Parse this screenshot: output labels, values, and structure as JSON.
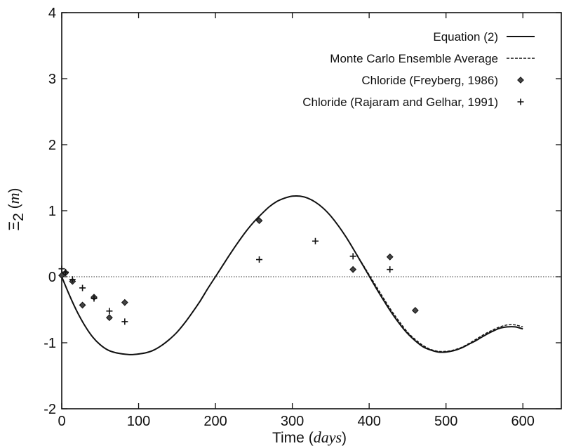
{
  "chart_data": {
    "type": "scatter",
    "title": "",
    "xlabel": "Time",
    "xlabel_unit": "days",
    "ylabel": "Ξ",
    "ylabel_sub": "2",
    "ylabel_unit": "m",
    "xlim": [
      0,
      650
    ],
    "ylim": [
      -2,
      4
    ],
    "xticks": [
      0,
      100,
      200,
      300,
      400,
      500,
      600
    ],
    "yticks": [
      -2,
      -1,
      0,
      1,
      2,
      3,
      4
    ],
    "grid": false,
    "legend_position": "top-right",
    "reference_line_y": 0,
    "series": [
      {
        "name": "Equation (2)",
        "style": "solid-line",
        "x": [
          0,
          10,
          20,
          30,
          40,
          50,
          60,
          70,
          80,
          90,
          100,
          110,
          120,
          130,
          140,
          150,
          160,
          170,
          180,
          190,
          200,
          210,
          220,
          230,
          240,
          250,
          260,
          270,
          280,
          290,
          300,
          310,
          320,
          330,
          340,
          350,
          360,
          370,
          380,
          390,
          400,
          410,
          420,
          430,
          440,
          450,
          460,
          470,
          480,
          490,
          500,
          510,
          520,
          530,
          540,
          550,
          560,
          570,
          580,
          590,
          600
        ],
        "y": [
          0.0,
          -0.28,
          -0.53,
          -0.74,
          -0.91,
          -1.03,
          -1.11,
          -1.15,
          -1.17,
          -1.18,
          -1.17,
          -1.15,
          -1.11,
          -1.04,
          -0.95,
          -0.84,
          -0.7,
          -0.54,
          -0.37,
          -0.18,
          0.0,
          0.18,
          0.36,
          0.53,
          0.69,
          0.83,
          0.95,
          1.06,
          1.14,
          1.19,
          1.22,
          1.22,
          1.19,
          1.13,
          1.04,
          0.92,
          0.77,
          0.6,
          0.41,
          0.21,
          0.01,
          -0.19,
          -0.38,
          -0.56,
          -0.72,
          -0.86,
          -0.97,
          -1.06,
          -1.11,
          -1.14,
          -1.14,
          -1.12,
          -1.08,
          -1.02,
          -0.96,
          -0.89,
          -0.83,
          -0.78,
          -0.76,
          -0.76,
          -0.79
        ]
      },
      {
        "name": "Monte Carlo Ensemble Average",
        "style": "dashed-line",
        "x": [
          0,
          10,
          20,
          30,
          40,
          50,
          60,
          70,
          80,
          90,
          100,
          110,
          120,
          130,
          140,
          150,
          160,
          170,
          180,
          190,
          200,
          210,
          220,
          230,
          240,
          250,
          260,
          270,
          280,
          290,
          300,
          310,
          320,
          330,
          340,
          350,
          360,
          370,
          380,
          390,
          400,
          410,
          420,
          430,
          440,
          450,
          460,
          470,
          480,
          490,
          500,
          510,
          520,
          530,
          540,
          550,
          560,
          570,
          580,
          590,
          600
        ],
        "y": [
          0.0,
          -0.28,
          -0.53,
          -0.74,
          -0.91,
          -1.03,
          -1.11,
          -1.15,
          -1.17,
          -1.18,
          -1.17,
          -1.15,
          -1.11,
          -1.04,
          -0.95,
          -0.84,
          -0.7,
          -0.54,
          -0.37,
          -0.18,
          0.0,
          0.18,
          0.36,
          0.53,
          0.69,
          0.83,
          0.95,
          1.06,
          1.14,
          1.19,
          1.22,
          1.22,
          1.19,
          1.13,
          1.04,
          0.92,
          0.77,
          0.6,
          0.41,
          0.22,
          0.03,
          -0.16,
          -0.35,
          -0.53,
          -0.69,
          -0.84,
          -0.95,
          -1.04,
          -1.1,
          -1.13,
          -1.13,
          -1.11,
          -1.07,
          -1.01,
          -0.94,
          -0.87,
          -0.81,
          -0.76,
          -0.73,
          -0.73,
          -0.76
        ]
      },
      {
        "name": "Chloride (Freyberg, 1986)",
        "style": "diamond-marker",
        "x": [
          0,
          5,
          14,
          27,
          42,
          62,
          82,
          257,
          379,
          427,
          460
        ],
        "y": [
          0.02,
          0.06,
          -0.07,
          -0.43,
          -0.31,
          -0.62,
          -0.39,
          0.85,
          0.11,
          0.3,
          -0.51
        ]
      },
      {
        "name": "Chloride (Rajaram and Gelhar, 1991)",
        "style": "plus-marker",
        "x": [
          0,
          5,
          14,
          27,
          42,
          62,
          82,
          257,
          330,
          379,
          427
        ],
        "y": [
          0.12,
          0.07,
          -0.04,
          -0.17,
          -0.33,
          -0.52,
          -0.68,
          0.26,
          0.54,
          0.31,
          0.11
        ]
      }
    ]
  }
}
